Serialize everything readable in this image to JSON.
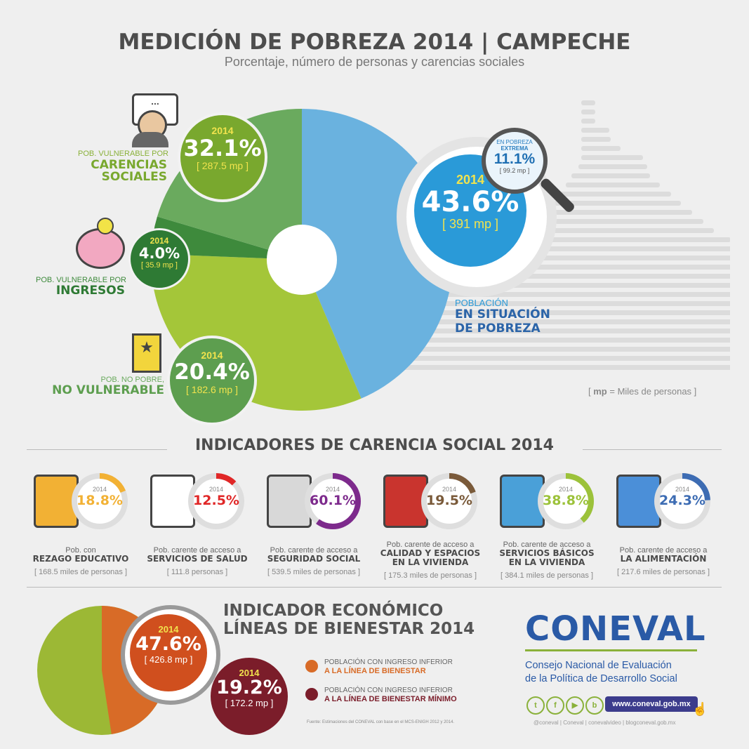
{
  "header": {
    "title": "MEDICIÓN DE POBREZA 2014 | CAMPECHE",
    "subtitle": "Porcentaje, número de personas y carencias sociales"
  },
  "poverty": {
    "pobreza": {
      "year": "2014",
      "pct": "43.6%",
      "people": "[ 391 mp ]",
      "label_top": "POBLACIÓN",
      "label_line1": "EN SITUACIÓN",
      "label_line2": "DE POBREZA"
    },
    "extrema": {
      "label1": "EN POBREZA",
      "label2": "EXTREMA",
      "pct": "11.1%",
      "people": "[ 99.2 mp ]"
    },
    "carencias": {
      "year": "2014",
      "pct": "32.1%",
      "people": "[ 287.5 mp ]",
      "label_top": "POB. VULNERABLE POR",
      "label_line1": "CARENCIAS",
      "label_line2": "SOCIALES"
    },
    "ingresos": {
      "year": "2014",
      "pct": "4.0%",
      "people": "[ 35.9 mp ]",
      "label_top": "POB. VULNERABLE POR",
      "label_line1": "INGRESOS"
    },
    "no_pobre": {
      "year": "2014",
      "pct": "20.4%",
      "people": "[ 182.6 mp ]",
      "label_top": "POB. NO POBRE,",
      "label_line1": "NO VULNERABLE"
    },
    "legend_note_key": "mp",
    "legend_note_rest": "= Miles de personas"
  },
  "indicators": {
    "title": "INDICADORES DE CARENCIA SOCIAL 2014",
    "items": [
      {
        "year": "2014",
        "pct": "18.8%",
        "value": 18.8,
        "color": "#f2b134",
        "line1": "Pob. con",
        "line2": "REZAGO EDUCATIVO",
        "line3": "",
        "count": "[ 168.5 miles de personas ]"
      },
      {
        "year": "2014",
        "pct": "12.5%",
        "value": 12.5,
        "color": "#e02727",
        "line1": "Pob. carente de acceso a",
        "line2": "SERVICIOS DE SALUD",
        "line3": "",
        "count": "[ 111.8 personas ]"
      },
      {
        "year": "2014",
        "pct": "60.1%",
        "value": 60.1,
        "color": "#7d2a8c",
        "line1": "Pob. carente de acceso a",
        "line2": "SEGURIDAD SOCIAL",
        "line3": "",
        "count": "[ 539.5 miles de personas ]"
      },
      {
        "year": "2014",
        "pct": "19.5%",
        "value": 19.5,
        "color": "#7a5a3a",
        "line1": "Pob. carente de acceso a",
        "line2": "CALIDAD Y ESPACIOS",
        "line3": "EN LA VIVIENDA",
        "count": "[ 175.3 miles de personas ]"
      },
      {
        "year": "2014",
        "pct": "38.8%",
        "value": 38.8,
        "color": "#9cc23a",
        "line1": "Pob. carente de acceso a",
        "line2": "SERVICIOS BÁSICOS",
        "line3": "EN LA VIVIENDA",
        "count": "[ 384.1 miles de personas ]"
      },
      {
        "year": "2014",
        "pct": "24.3%",
        "value": 24.3,
        "color": "#3d6cb3",
        "line1": "Pob. carente de acceso a",
        "line2": "LA ALIMENTACIÓN",
        "line3": "",
        "count": "[ 217.6 miles de personas ]"
      }
    ]
  },
  "economic": {
    "title1": "INDICADOR ECONÓMICO",
    "title2": "LÍNEAS DE BIENESTAR 2014",
    "bienestar": {
      "year": "2014",
      "pct": "47.6%",
      "people": "[ 426.8 mp ]"
    },
    "minimo": {
      "year": "2014",
      "pct": "19.2%",
      "people": "[ 172.2 mp ]"
    },
    "legend1_top": "POBLACIÓN CON INGRESO INFERIOR",
    "legend1_bottom": "A LA LÍNEA DE BIENESTAR",
    "legend2_top": "POBLACIÓN CON INGRESO INFERIOR",
    "legend2_bottom": "A LA LÍNEA DE BIENESTAR MÍNIMO",
    "source": "Fuente: Estimaciones del CONEVAL con base en el MCS-ENIGH 2012 y 2014."
  },
  "brand": {
    "logo": "CONEVAL",
    "line1": "Consejo Nacional de Evaluación",
    "line2": "de la Política de Desarrollo Social",
    "url": "www.coneval.gob.mx",
    "handles": "@coneval  |  Coneval  |  conevalvideo  |  blogconeval.gob.mx"
  },
  "chart_data": [
    {
      "type": "pie",
      "title": "MEDICIÓN DE POBREZA 2014 | CAMPECHE",
      "categories": [
        "Población en situación de pobreza",
        "Pob. vulnerable por carencias sociales",
        "Pob. vulnerable por ingresos",
        "Pob. no pobre, no vulnerable"
      ],
      "values": [
        43.6,
        32.1,
        4.0,
        20.4
      ],
      "people_mp": [
        391,
        287.5,
        35.9,
        182.6
      ],
      "colors": [
        "#6ab2df",
        "#a4c639",
        "#3e8a3c",
        "#6aaa5e"
      ],
      "sub_value": {
        "label": "En pobreza extrema",
        "value": 11.1,
        "people_mp": 99.2
      }
    },
    {
      "type": "bar",
      "title": "INDICADORES DE CARENCIA SOCIAL 2014",
      "categories": [
        "Rezago educativo",
        "Servicios de salud",
        "Seguridad social",
        "Calidad y espacios en la vivienda",
        "Servicios básicos en la vivienda",
        "Alimentación"
      ],
      "values": [
        18.8,
        12.5,
        60.1,
        19.5,
        38.8,
        24.3
      ],
      "people_thousands": [
        168.5,
        111.8,
        539.5,
        175.3,
        384.1,
        217.6
      ]
    },
    {
      "type": "pie",
      "title": "LÍNEAS DE BIENESTAR 2014",
      "categories": [
        "Ingreso inferior a la línea de bienestar",
        "Ingreso inferior a la línea de bienestar mínimo"
      ],
      "values": [
        47.6,
        19.2
      ],
      "people_mp": [
        426.8,
        172.2
      ],
      "colors": [
        "#d86b27",
        "#7b1d2a"
      ]
    }
  ]
}
